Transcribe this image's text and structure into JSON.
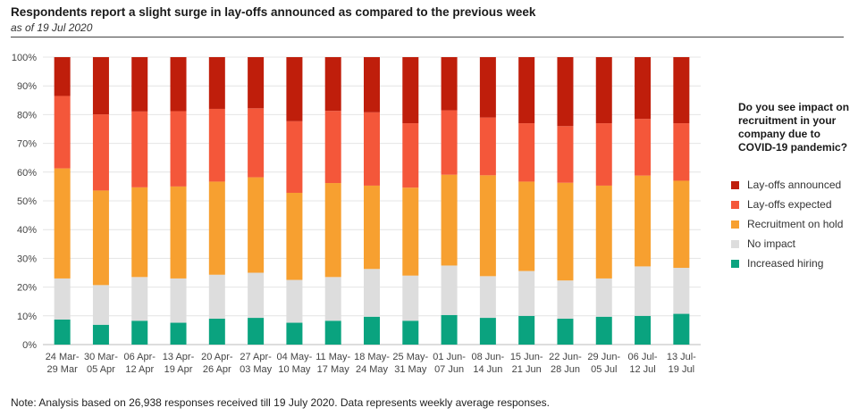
{
  "header": {
    "title": "Respondents report a slight surge in lay-offs announced as compared to the previous week",
    "subtitle": "as of 19 Jul 2020"
  },
  "note": "Note: Analysis based on 26,938 responses received till 19 July 2020. Data represents weekly average responses.",
  "chart_data": {
    "type": "bar",
    "stacked": true,
    "title": "Respondents report a slight surge in lay-offs announced as compared to the previous week",
    "subtitle": "as of 19 Jul 2020",
    "legend_title": "Do you see impact on recruitment in your company due to COVID-19 pandemic?",
    "legend_position": "right",
    "grid": true,
    "ylim": [
      0,
      100
    ],
    "yticks": [
      "0%",
      "10%",
      "20%",
      "30%",
      "40%",
      "50%",
      "60%",
      "70%",
      "80%",
      "90%",
      "100%"
    ],
    "categories": [
      [
        "24 Mar-",
        "29 Mar"
      ],
      [
        "30 Mar-",
        "05 Apr"
      ],
      [
        "06 Apr-",
        "12 Apr"
      ],
      [
        "13 Apr-",
        "19 Apr"
      ],
      [
        "20 Apr-",
        "26 Apr"
      ],
      [
        "27 Apr-",
        "03 May"
      ],
      [
        "04 May-",
        "10 May"
      ],
      [
        "11 May-",
        "17 May"
      ],
      [
        "18 May-",
        "24 May"
      ],
      [
        "25 May-",
        "31 May"
      ],
      [
        "01 Jun-",
        "07 Jun"
      ],
      [
        "08 Jun-",
        "14 Jun"
      ],
      [
        "15 Jun-",
        "21 Jun"
      ],
      [
        "22 Jun-",
        "28 Jun"
      ],
      [
        "29 Jun-",
        "05 Jul"
      ],
      [
        "06 Jul-",
        "12 Jul"
      ],
      [
        "13 Jul-",
        "19 Jul"
      ]
    ],
    "series": [
      {
        "name": "Increased hiring",
        "color": "#0aa37f",
        "values": [
          8.7,
          6.9,
          8.3,
          7.6,
          9.0,
          9.3,
          7.6,
          8.3,
          9.7,
          8.3,
          10.3,
          9.3,
          10.0,
          9.0,
          9.7,
          10.0,
          10.7
        ]
      },
      {
        "name": "No impact",
        "color": "#dddddd",
        "values": [
          14.3,
          13.8,
          15.2,
          15.4,
          15.3,
          15.7,
          14.9,
          15.2,
          16.6,
          15.7,
          17.2,
          14.5,
          15.6,
          13.3,
          13.3,
          17.2,
          16.0
        ]
      },
      {
        "name": "Recruitment on hold",
        "color": "#f7a030",
        "values": [
          38.3,
          32.9,
          31.2,
          32.0,
          32.4,
          33.2,
          30.3,
          32.7,
          29.0,
          30.6,
          31.6,
          35.1,
          31.1,
          34.0,
          32.3,
          31.6,
          30.3
        ]
      },
      {
        "name": "Lay-offs expected",
        "color": "#f4573a",
        "values": [
          25.2,
          26.5,
          26.4,
          26.2,
          25.3,
          24.0,
          24.9,
          25.1,
          25.5,
          22.4,
          22.4,
          20.1,
          20.3,
          19.7,
          21.7,
          19.7,
          20.0
        ]
      },
      {
        "name": "Lay-offs announced",
        "color": "#bf1e0b",
        "values": [
          13.5,
          19.9,
          18.9,
          18.8,
          18.0,
          17.8,
          22.3,
          18.7,
          19.2,
          23.0,
          18.5,
          21.0,
          23.0,
          24.0,
          23.0,
          21.5,
          23.0
        ]
      }
    ],
    "legend_order": [
      "Lay-offs announced",
      "Lay-offs expected",
      "Recruitment on hold",
      "No impact",
      "Increased hiring"
    ]
  }
}
